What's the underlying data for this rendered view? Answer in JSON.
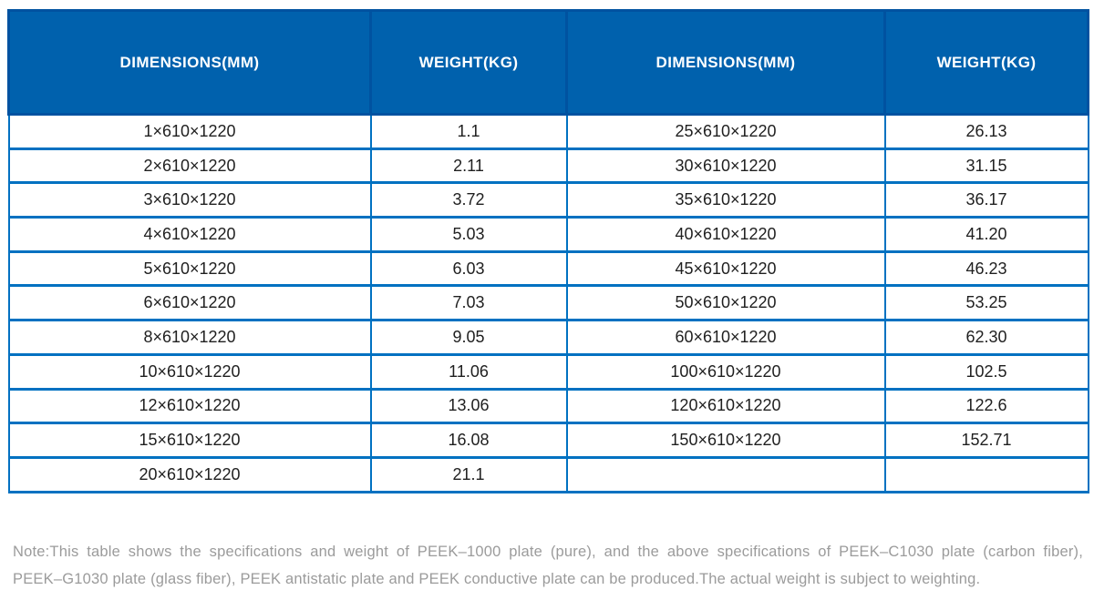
{
  "table": {
    "columns": [
      {
        "label": "DIMENSIONS(MM)"
      },
      {
        "label": "WEIGHT(KG)"
      },
      {
        "label": "DIMENSIONS(MM)"
      },
      {
        "label": "WEIGHT(KG)"
      }
    ],
    "rows": [
      [
        "1×610×1220",
        "1.1",
        "25×610×1220",
        "26.13"
      ],
      [
        "2×610×1220",
        "2.11",
        "30×610×1220",
        "31.15"
      ],
      [
        "3×610×1220",
        "3.72",
        "35×610×1220",
        "36.17"
      ],
      [
        "4×610×1220",
        "5.03",
        "40×610×1220",
        "41.20"
      ],
      [
        "5×610×1220",
        "6.03",
        "45×610×1220",
        "46.23"
      ],
      [
        "6×610×1220",
        "7.03",
        "50×610×1220",
        "53.25"
      ],
      [
        "8×610×1220",
        "9.05",
        "60×610×1220",
        "62.30"
      ],
      [
        "10×610×1220",
        "11.06",
        "100×610×1220",
        "102.5"
      ],
      [
        "12×610×1220",
        "13.06",
        "120×610×1220",
        "122.6"
      ],
      [
        "15×610×1220",
        "16.08",
        "150×610×1220",
        "152.71"
      ],
      [
        "20×610×1220",
        "21.1",
        "",
        ""
      ]
    ]
  },
  "note": {
    "line1": "Note:This table shows the specifications and weight of PEEK–1000 plate (pure), and the above specifications of PEEK–C1030 plate (carbon fiber),",
    "line2": "PEEK–G1030 plate (glass fiber), PEEK antistatic plate and PEEK conductive plate can be produced.The actual weight is subject to weighting."
  },
  "colors": {
    "header_bg": "#0061ad",
    "header_border": "#0052a0",
    "header_text": "#ffffff",
    "body_border": "#0071c1",
    "body_text": "#1f1f1f",
    "note_text": "#9b9b9b",
    "page_bg": "#ffffff"
  }
}
